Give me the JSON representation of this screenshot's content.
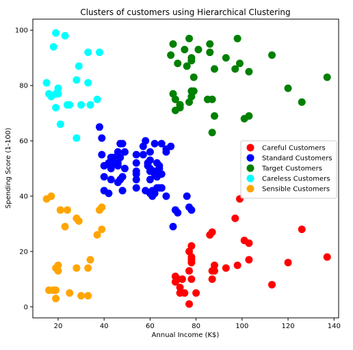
{
  "chart_data": {
    "type": "scatter",
    "title": "Clusters of customers using Hierarchical Clustering",
    "xlabel": "Annual Income (K$)",
    "ylabel": "Spending Score (1-100)",
    "xlim": [
      9,
      142
    ],
    "ylim": [
      -4,
      104
    ],
    "xticks": [
      20,
      40,
      60,
      80,
      100,
      120,
      140
    ],
    "yticks": [
      0,
      20,
      40,
      60,
      80,
      100
    ],
    "grid": false,
    "legend_position": "right",
    "series": [
      {
        "name": "Careful Customers",
        "color": "#ff0000",
        "x": [
          71,
          71,
          72,
          73,
          73,
          74,
          75,
          77,
          77,
          77,
          78,
          78,
          78,
          78,
          78,
          80,
          86,
          87,
          87,
          87,
          88,
          88,
          93,
          97,
          98,
          99,
          101,
          103,
          103,
          113,
          120,
          126,
          137
        ],
        "y": [
          11,
          9,
          10,
          7,
          5,
          10,
          5,
          13,
          1,
          20,
          22,
          18,
          16,
          17,
          10,
          5,
          26,
          13,
          27,
          10,
          13,
          15,
          14,
          32,
          15,
          39,
          24,
          23,
          17,
          8,
          16,
          28,
          18
        ]
      },
      {
        "name": "Standard Customers",
        "color": "#0000ff",
        "x": [
          38,
          39,
          39,
          40,
          40,
          40,
          42,
          42,
          43,
          43,
          43,
          44,
          44,
          46,
          46,
          46,
          46,
          47,
          47,
          47,
          48,
          48,
          48,
          49,
          49,
          54,
          54,
          54,
          54,
          54,
          54,
          57,
          57,
          58,
          58,
          59,
          59,
          60,
          60,
          60,
          60,
          60,
          60,
          61,
          61,
          62,
          62,
          62,
          62,
          63,
          63,
          63,
          63,
          64,
          64,
          64,
          65,
          65,
          65,
          65,
          67,
          67,
          67,
          69,
          70,
          71,
          72,
          76,
          77,
          78
        ],
        "y": [
          65,
          61,
          55,
          47,
          42,
          51,
          52,
          41,
          50,
          46,
          54,
          52,
          54,
          56,
          52,
          51,
          45,
          59,
          46,
          54,
          59,
          47,
          42,
          50,
          56,
          55,
          52,
          46,
          49,
          48,
          43,
          58,
          55,
          60,
          42,
          51,
          52,
          50,
          46,
          41,
          56,
          49,
          53,
          40,
          42,
          48,
          59,
          49,
          41,
          43,
          47,
          52,
          47,
          50,
          43,
          51,
          48,
          59,
          43,
          43,
          40,
          57,
          56,
          58,
          29,
          35,
          34,
          40,
          36,
          35
        ]
      },
      {
        "name": "Target Customers",
        "color": "#008000",
        "x": [
          69,
          70,
          70,
          71,
          71,
          72,
          73,
          73,
          73,
          75,
          76,
          77,
          77,
          78,
          78,
          78,
          78,
          79,
          79,
          81,
          85,
          86,
          86,
          87,
          87,
          88,
          88,
          93,
          97,
          98,
          99,
          101,
          103,
          103,
          113,
          120,
          126,
          137
        ],
        "y": [
          91,
          77,
          95,
          75,
          71,
          88,
          73,
          72,
          73,
          93,
          87,
          97,
          74,
          90,
          76,
          89,
          78,
          78,
          83,
          93,
          75,
          95,
          92,
          75,
          63,
          86,
          69,
          90,
          86,
          97,
          88,
          68,
          85,
          69,
          91,
          79,
          74,
          83
        ]
      },
      {
        "name": "Careless Customers",
        "color": "#00ffff",
        "x": [
          15,
          16,
          17,
          18,
          19,
          19,
          19,
          20,
          20,
          21,
          23,
          24,
          25,
          28,
          28,
          29,
          30,
          33,
          33,
          34,
          37,
          38
        ],
        "y": [
          81,
          77,
          76,
          94,
          72,
          99,
          77,
          79,
          77,
          66,
          98,
          73,
          73,
          82,
          61,
          87,
          73,
          92,
          81,
          73,
          75,
          92
        ]
      },
      {
        "name": "Sensible Customers",
        "color": "#ffa500",
        "x": [
          15,
          16,
          17,
          18,
          19,
          19,
          20,
          20,
          21,
          23,
          24,
          25,
          28,
          28,
          29,
          30,
          33,
          33,
          34,
          37,
          38,
          39,
          39,
          19
        ],
        "y": [
          39,
          6,
          40,
          6,
          3,
          14,
          15,
          13,
          35,
          29,
          35,
          5,
          14,
          32,
          31,
          4,
          4,
          14,
          17,
          26,
          35,
          36,
          28,
          6
        ]
      }
    ]
  }
}
